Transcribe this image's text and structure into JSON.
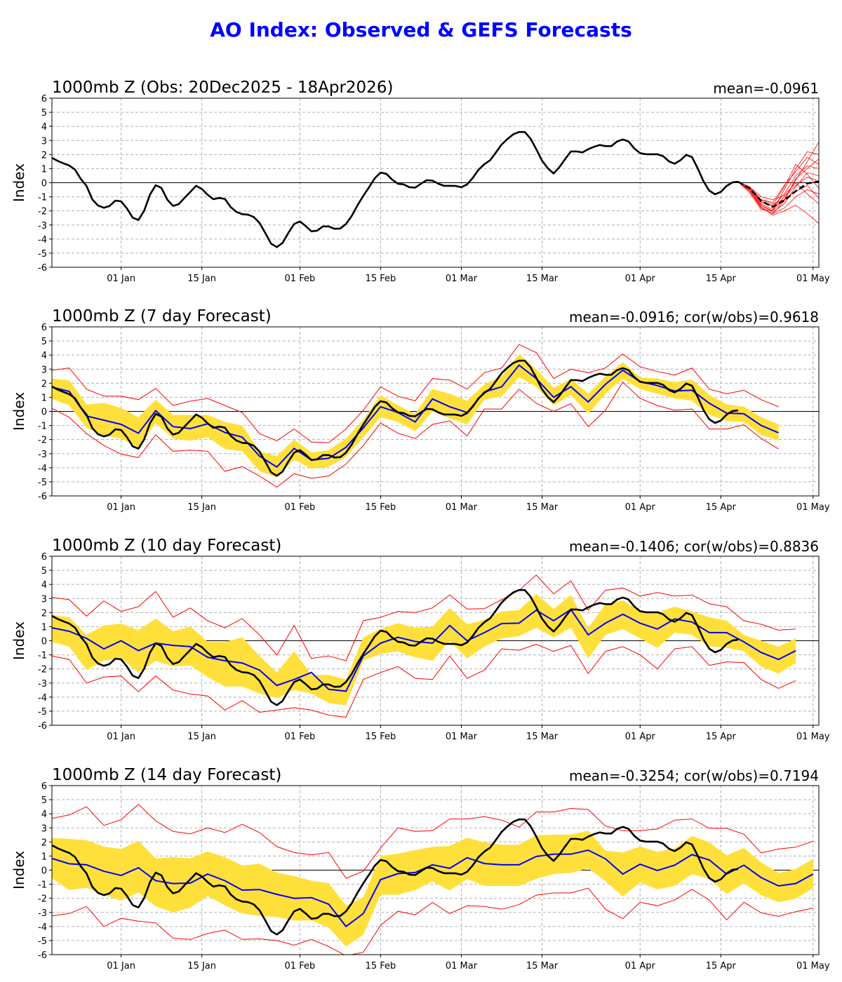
{
  "page_title": "AO Index: Observed & GEFS Forecasts",
  "colors": {
    "title": "#0000ff",
    "observed": "#000000",
    "forecast_mean": "#0000ff",
    "spread_band": "#ffe03a",
    "min_max": "#ff0000",
    "ensemble_members": "#ff0000",
    "grid": "#b0b0b0"
  },
  "chart_data": {
    "type": "line",
    "shared": {
      "ylabel": "Index",
      "ylim": [
        -6,
        6
      ],
      "yticks": [
        "-6",
        "-5",
        "-4",
        "-3",
        "-2",
        "-1",
        "0",
        "1",
        "2",
        "3",
        "4",
        "5",
        "6"
      ],
      "xlim": [
        "2025-12-20",
        "2026-05-02"
      ],
      "xticks": [
        {
          "label": "01 Jan",
          "date": "2026-01-01"
        },
        {
          "label": "15 Jan",
          "date": "2026-01-15"
        },
        {
          "label": "01 Feb",
          "date": "2026-02-01"
        },
        {
          "label": "15 Feb",
          "date": "2026-02-15"
        },
        {
          "label": "01 Mar",
          "date": "2026-03-01"
        },
        {
          "label": "15 Mar",
          "date": "2026-03-15"
        },
        {
          "label": "01 Apr",
          "date": "2026-04-01"
        },
        {
          "label": "15 Apr",
          "date": "2026-04-15"
        },
        {
          "label": "01 May",
          "date": "2026-05-01"
        }
      ],
      "grid": true,
      "observed": {
        "start": "2025-12-20",
        "step_days": 1,
        "values": [
          1.77,
          1.55,
          1.38,
          1.22,
          0.93,
          0.27,
          -0.23,
          -1.18,
          -1.62,
          -1.78,
          -1.65,
          -1.27,
          -1.32,
          -1.82,
          -2.48,
          -2.65,
          -1.98,
          -0.85,
          -0.18,
          -0.37,
          -1.2,
          -1.65,
          -1.52,
          -1.07,
          -0.65,
          -0.22,
          -0.45,
          -0.85,
          -1.17,
          -1.08,
          -1.15,
          -1.73,
          -2.07,
          -2.23,
          -2.27,
          -2.43,
          -2.85,
          -3.57,
          -4.32,
          -4.57,
          -4.27,
          -3.57,
          -2.93,
          -2.75,
          -3.07,
          -3.45,
          -3.4,
          -3.1,
          -3.1,
          -3.27,
          -3.25,
          -2.93,
          -2.35,
          -1.6,
          -0.93,
          -0.32,
          0.32,
          0.72,
          0.63,
          0.22,
          -0.07,
          -0.12,
          -0.32,
          -0.35,
          -0.07,
          0.18,
          0.15,
          -0.07,
          -0.22,
          -0.22,
          -0.23,
          -0.32,
          -0.12,
          0.35,
          0.93,
          1.32,
          1.6,
          2.15,
          2.72,
          3.1,
          3.43,
          3.6,
          3.6,
          3.13,
          2.38,
          1.57,
          1.02,
          0.65,
          1.1,
          1.68,
          2.22,
          2.22,
          2.15,
          2.38,
          2.55,
          2.68,
          2.6,
          2.6,
          2.93,
          3.07,
          2.93,
          2.43,
          2.1,
          2.02,
          2.02,
          2.02,
          1.88,
          1.52,
          1.35,
          1.6,
          1.98,
          1.82,
          1.02,
          0.1,
          -0.57,
          -0.82,
          -0.65,
          -0.23,
          0.02,
          0.07
        ]
      }
    },
    "panels": [
      {
        "title": "1000mb Z (Obs: 20Dec2025 - 18Apr2026)",
        "stats": "mean=-0.0961",
        "ensemble": {
          "start": "2026-04-18",
          "step_days": 2,
          "mean": [
            0.07,
            -0.4,
            -1.3,
            -1.72,
            -1.25,
            -0.6,
            -0.05,
            0.1
          ],
          "members": [
            [
              0.07,
              -0.5,
              -1.6,
              -2.0,
              -1.2,
              0.2,
              1.5,
              2.9
            ],
            [
              0.07,
              -0.4,
              -1.3,
              -1.7,
              -0.8,
              0.5,
              1.2,
              1.0
            ],
            [
              0.07,
              -0.6,
              -1.8,
              -2.2,
              -1.8,
              -1.0,
              -0.5,
              -0.8
            ],
            [
              0.07,
              -0.3,
              -1.2,
              -1.4,
              -0.2,
              0.8,
              1.8,
              1.3
            ],
            [
              0.07,
              -0.5,
              -1.7,
              -2.3,
              -2.0,
              -1.6,
              -2.2,
              -2.9
            ],
            [
              0.07,
              -0.4,
              -1.5,
              -1.9,
              -1.0,
              -0.2,
              0.4,
              0.1
            ],
            [
              0.07,
              -0.7,
              -1.9,
              -2.0,
              -0.5,
              1.0,
              2.2,
              2.0
            ],
            [
              0.07,
              -0.3,
              -1.0,
              -1.2,
              -0.9,
              0.0,
              -0.8,
              -1.5
            ],
            [
              0.07,
              -0.5,
              -1.6,
              -2.1,
              -1.5,
              -0.3,
              0.7,
              0.5
            ],
            [
              0.07,
              -0.4,
              -1.4,
              -1.6,
              -0.3,
              1.3,
              0.6,
              -0.4
            ],
            [
              0.07,
              -0.6,
              -1.8,
              -2.2,
              -1.3,
              0.3,
              1.0,
              1.7
            ],
            [
              0.07,
              -0.4,
              -1.2,
              -1.5,
              -1.2,
              -0.6,
              -0.2,
              -1.1
            ]
          ]
        }
      },
      {
        "title": "1000mb Z (7 day Forecast)",
        "stats": "mean=-0.0916; cor(w/obs)=0.9618",
        "forecast": {
          "start": "2025-12-20",
          "step_days": 3,
          "mean": [
            1.72,
            1.42,
            -0.33,
            -0.62,
            -0.92,
            -1.55,
            0.05,
            -1.08,
            -1.22,
            -0.88,
            -1.5,
            -1.83,
            -3.17,
            -3.95,
            -2.63,
            -3.45,
            -3.33,
            -2.55,
            -1.17,
            0.33,
            -0.08,
            -0.75,
            0.88,
            0.33,
            -0.08,
            1.38,
            1.75,
            3.28,
            2.33,
            1.0,
            1.75,
            0.67,
            1.92,
            2.92,
            2.12,
            1.83,
            1.45,
            1.5,
            0.58,
            -0.12,
            -0.17,
            -1.0,
            -1.52
          ],
          "spread_high": [
            2.33,
            2.2,
            0.5,
            0.6,
            0.25,
            -0.42,
            0.83,
            -0.25,
            -0.25,
            -0.25,
            -0.75,
            -1.0,
            -2.83,
            -3.17,
            -2.0,
            -2.92,
            -2.75,
            -1.92,
            -0.58,
            1.17,
            0.42,
            -0.17,
            1.6,
            1.25,
            0.75,
            1.92,
            2.5,
            4.08,
            3.0,
            1.67,
            2.33,
            1.25,
            2.5,
            3.5,
            2.42,
            2.33,
            2.08,
            2.25,
            1.17,
            0.5,
            0.33,
            -0.42,
            -0.92
          ],
          "spread_low": [
            0.88,
            0.42,
            -1.17,
            -1.7,
            -1.92,
            -2.58,
            -0.83,
            -1.92,
            -2.08,
            -1.83,
            -2.67,
            -2.83,
            -4.25,
            -4.67,
            -3.42,
            -4.08,
            -3.92,
            -3.25,
            -1.83,
            -0.42,
            -0.75,
            -1.42,
            0,
            -0.5,
            -0.92,
            0.83,
            1.08,
            2.42,
            1.75,
            0.42,
            1.17,
            -0.17,
            1.25,
            2.33,
            1.58,
            1.25,
            0.92,
            0.75,
            -0.25,
            -0.67,
            -0.75,
            -1.67,
            -2.08
          ],
          "max": [
            2.92,
            3.08,
            1.58,
            1.08,
            1.08,
            0.83,
            1.63,
            0.42,
            0.72,
            0.92,
            0.42,
            -0.08,
            -1.58,
            -2.08,
            -1.25,
            -2.17,
            -2.22,
            -1.25,
            0.08,
            1.75,
            1.08,
            0.75,
            2.33,
            2.22,
            1.58,
            2.75,
            3.08,
            4.75,
            4.17,
            2.33,
            3.0,
            2.75,
            3.08,
            4.08,
            3.17,
            2.83,
            2.58,
            3.08,
            1.58,
            1.25,
            1.5,
            0.83,
            0.33
          ],
          "min": [
            0.22,
            -0.42,
            -1.58,
            -2.42,
            -3.03,
            -3.28,
            -1.67,
            -2.83,
            -2.75,
            -2.83,
            -4.25,
            -3.92,
            -4.58,
            -5.38,
            -4.42,
            -4.75,
            -4.58,
            -3.75,
            -2.42,
            -0.83,
            -1.55,
            -1.92,
            -0.92,
            -0.67,
            -1.75,
            0.17,
            0.17,
            1.58,
            0.58,
            0,
            0.55,
            -1.08,
            0.08,
            2.08,
            0.92,
            0.42,
            0.08,
            0.17,
            -1.25,
            -1.25,
            -0.95,
            -1.92,
            -2.67
          ]
        }
      },
      {
        "title": "1000mb Z (10 day Forecast)",
        "stats": "mean=-0.1406; cor(w/obs)=0.8836",
        "forecast": {
          "start": "2025-12-20",
          "step_days": 3,
          "mean": [
            0.92,
            0.67,
            0.17,
            -0.58,
            0,
            -0.7,
            -0.17,
            -0.33,
            -0.42,
            -1.17,
            -1.42,
            -1.58,
            -2.08,
            -3.17,
            -2.75,
            -2.25,
            -3.45,
            -3.58,
            -1.08,
            -0.17,
            0.25,
            -0.05,
            -0.17,
            1.08,
            0,
            0.58,
            1.22,
            1.25,
            2.17,
            1.42,
            2.22,
            0.42,
            1.25,
            1.88,
            1.25,
            0.83,
            1.55,
            1.33,
            0.58,
            0.58,
            -0.08,
            -0.83,
            -1.33,
            -0.7
          ],
          "spread_high": [
            1.83,
            1.67,
            0.42,
            1.08,
            1.22,
            0.75,
            1.58,
            0.67,
            1.0,
            -0.08,
            -0.08,
            0.25,
            -1.08,
            -2.25,
            -0.75,
            -2.42,
            -2.42,
            -2.75,
            0.25,
            0.83,
            1.25,
            0.92,
            1.0,
            2.33,
            1.17,
            1.5,
            2.08,
            2.17,
            3.33,
            2.25,
            3.25,
            0.92,
            2.58,
            2.88,
            2.08,
            2.0,
            2.42,
            2.08,
            1.67,
            1.42,
            0.42,
            0,
            -0.42,
            0.17
          ],
          "spread_low": [
            -0.08,
            -0.42,
            -2.08,
            -1.42,
            -1.25,
            -2.25,
            -1.42,
            -1.83,
            -1.75,
            -2.58,
            -3.25,
            -3.25,
            -3.75,
            -4.08,
            -3.5,
            -3.75,
            -4.42,
            -4.58,
            -1.42,
            -0.92,
            -0.75,
            -1.17,
            -1.42,
            0,
            -1.25,
            -0.42,
            0.17,
            0.33,
            0.92,
            0.25,
            0.92,
            -1.25,
            0.42,
            0.83,
            0.17,
            -0.5,
            0.58,
            0.42,
            -0.42,
            -0.5,
            -0.75,
            -1.83,
            -2.33,
            -1.58
          ],
          "max": [
            3.08,
            2.92,
            1.75,
            2.83,
            2.08,
            2.42,
            3.5,
            1.67,
            2.33,
            1.42,
            0.92,
            1.58,
            0.42,
            -1.0,
            1.08,
            -1.25,
            -1.08,
            -1.42,
            1.42,
            1.67,
            2.08,
            2.0,
            2.33,
            3.25,
            2.25,
            2.28,
            2.92,
            3.58,
            4.67,
            3.33,
            4.25,
            2.17,
            3.58,
            3.75,
            3.17,
            3.42,
            3.17,
            3.25,
            2.62,
            2.42,
            1.42,
            1.17,
            0.75,
            0.83
          ],
          "min": [
            -1.08,
            -1.33,
            -3.0,
            -2.58,
            -2.5,
            -3.62,
            -2.5,
            -3.5,
            -3.78,
            -3.92,
            -4.92,
            -4.25,
            -5.08,
            -4.92,
            -4.75,
            -4.92,
            -5.28,
            -5.42,
            -2.75,
            -2.25,
            -1.83,
            -2.67,
            -2.75,
            -1.08,
            -2.67,
            -2.08,
            -0.58,
            -0.67,
            -0.25,
            -0.75,
            -0.33,
            -2.33,
            -0.75,
            -0.42,
            -1.0,
            -2.0,
            -0.58,
            -0.42,
            -1.75,
            -1.5,
            -1.55,
            -2.75,
            -3.38,
            -2.83
          ]
        }
      },
      {
        "title": "1000mb Z (14 day Forecast)",
        "stats": "mean=-0.3254; cor(w/obs)=0.7194",
        "forecast": {
          "start": "2025-12-20",
          "step_days": 3,
          "mean": [
            0.83,
            0.45,
            0.38,
            -0.08,
            -0.38,
            0.17,
            -0.75,
            -0.95,
            -0.92,
            -0.28,
            -0.75,
            -1.42,
            -1.38,
            -1.72,
            -2.0,
            -1.95,
            -2.42,
            -4.0,
            -3.08,
            -0.67,
            -0.25,
            -0.17,
            0.38,
            0.13,
            0.88,
            0.47,
            0.38,
            0.38,
            0.97,
            1.13,
            1.13,
            1.42,
            0.8,
            -0.28,
            0.42,
            -0.03,
            0.35,
            1.1,
            0.72,
            -0.28,
            0.35,
            -0.53,
            -1.12,
            -0.95,
            -0.28
          ],
          "spread_high": [
            2.28,
            2.22,
            2.12,
            1.67,
            1.5,
            2.08,
            0.83,
            0.92,
            0.83,
            1.33,
            0.92,
            0.33,
            0.45,
            -0.17,
            -0.42,
            -0.75,
            -0.92,
            -2.5,
            -1.92,
            1.0,
            1.17,
            1.42,
            1.65,
            1.72,
            2.3,
            1.97,
            1.8,
            1.8,
            2.47,
            2.52,
            2.52,
            2.8,
            1.38,
            1.25,
            1.68,
            1.3,
            1.55,
            2.42,
            1.97,
            1.05,
            1.58,
            0.55,
            -0.2,
            0.08,
            0.8
          ],
          "spread_low": [
            -0.58,
            -1.42,
            -1.25,
            -1.75,
            -2.17,
            -1.58,
            -2.58,
            -3.0,
            -2.67,
            -1.83,
            -2.5,
            -3.08,
            -3.25,
            -3.33,
            -3.58,
            -3.58,
            -4.08,
            -5.42,
            -4.58,
            -1.75,
            -1.75,
            -1.42,
            -0.8,
            -1.45,
            -0.62,
            -1.12,
            -1.12,
            -1.12,
            -0.62,
            -0.28,
            -0.2,
            0.13,
            -0.78,
            -1.87,
            -0.87,
            -1.37,
            -1.12,
            -0.28,
            -0.62,
            -1.7,
            -0.95,
            -1.78,
            -2.28,
            -2.03,
            -1.28
          ],
          "max": [
            3.67,
            3.92,
            4.5,
            3.17,
            3.58,
            4.67,
            3.5,
            2.75,
            2.58,
            3.0,
            2.67,
            3.25,
            2.67,
            1.67,
            1.25,
            1.08,
            1.25,
            -0.58,
            -0.08,
            1.58,
            3.0,
            2.75,
            2.8,
            3.63,
            3.63,
            3.8,
            3.55,
            3.05,
            4.13,
            4.13,
            4.38,
            4.3,
            3.13,
            2.8,
            2.8,
            2.92,
            3.55,
            3.63,
            2.97,
            2.97,
            2.55,
            1.22,
            1.5,
            1.63,
            2.05
          ],
          "min": [
            -3.25,
            -3.08,
            -2.58,
            -4.0,
            -3.42,
            -3.62,
            -3.75,
            -4.83,
            -4.92,
            -4.5,
            -4.25,
            -4.92,
            -4.88,
            -5.0,
            -5.33,
            -4.92,
            -5.42,
            -6.08,
            -5.83,
            -3.92,
            -2.92,
            -3.17,
            -2.3,
            -3.08,
            -2.53,
            -2.58,
            -2.78,
            -2.45,
            -1.78,
            -1.62,
            -1.62,
            -1.28,
            -2.78,
            -3.45,
            -2.28,
            -2.53,
            -2.12,
            -1.37,
            -2.12,
            -3.53,
            -2.28,
            -3.03,
            -3.28,
            -2.95,
            -2.7
          ]
        }
      }
    ]
  }
}
